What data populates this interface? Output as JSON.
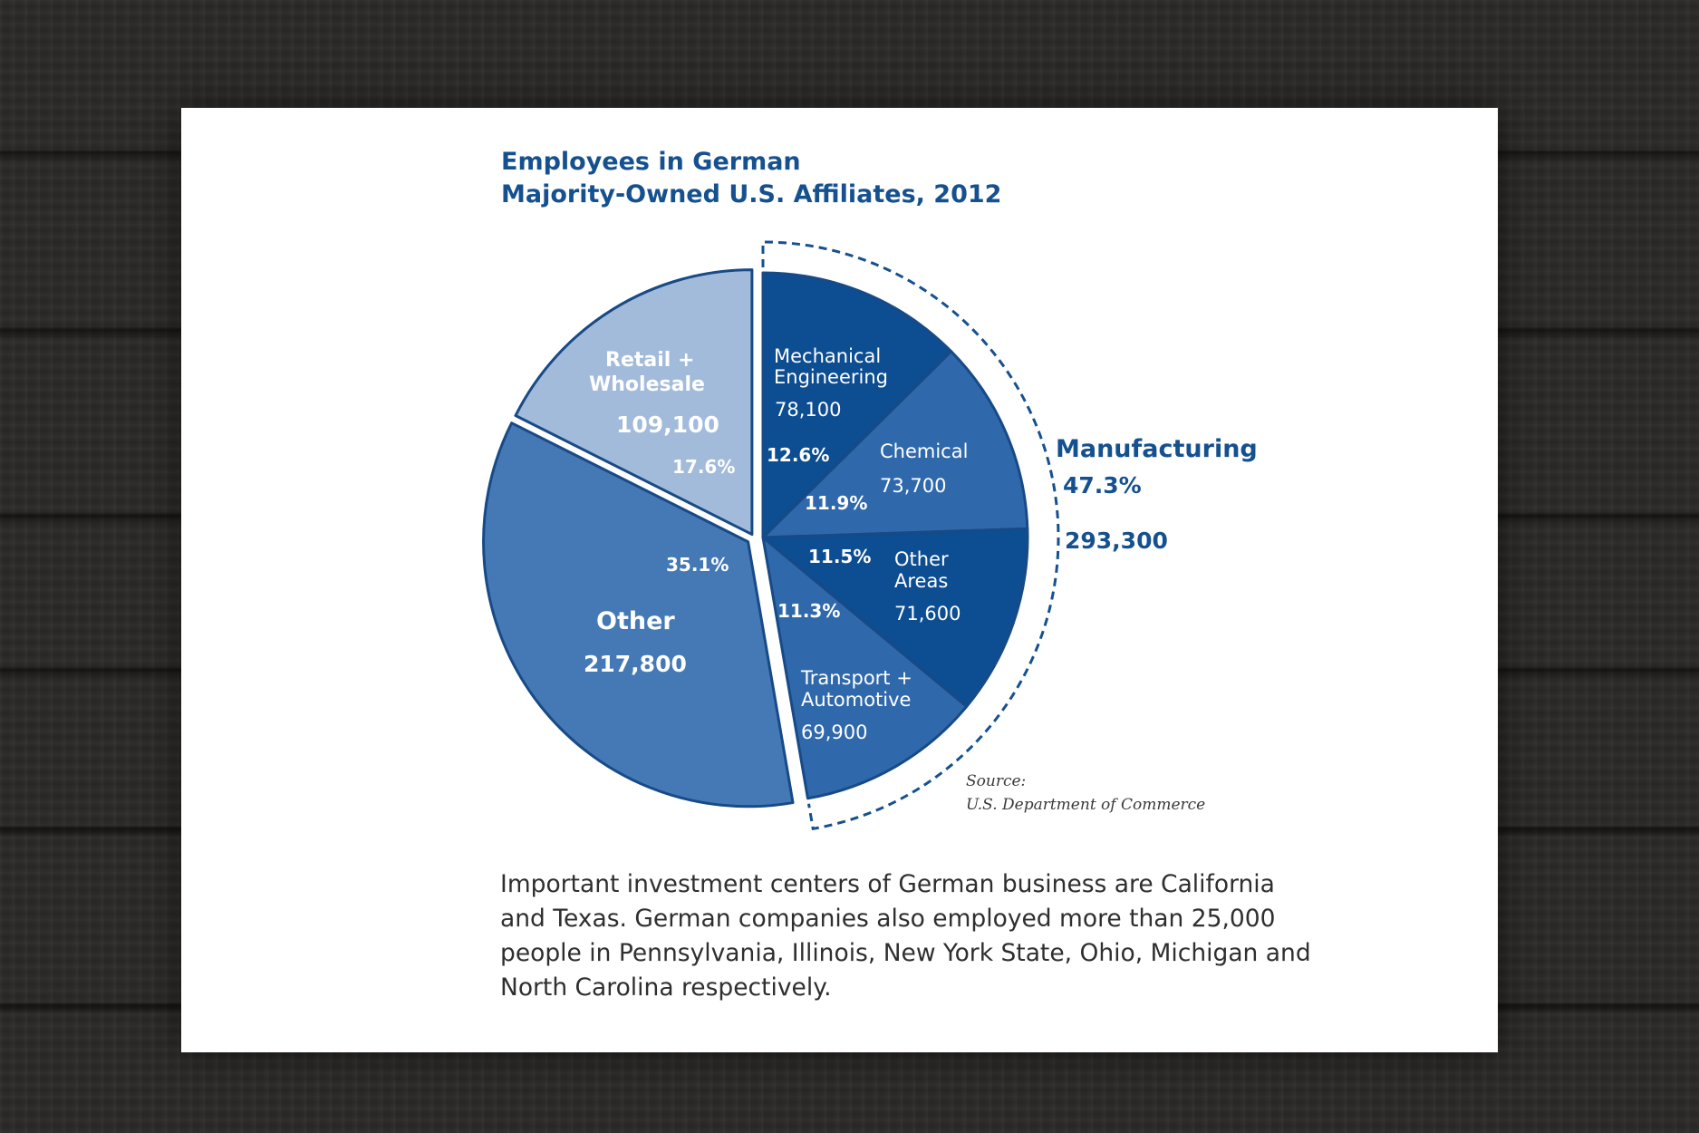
{
  "caption": "Important investment centers of German business are California and Texas. German companies also employed more than 25,000 people in Pennsylvania, Illinois, New York State, Ohio, Michigan and North Carolina respectively.",
  "source": {
    "label": "Source:",
    "name": "U.S. Department of Commerce"
  },
  "colors": {
    "title": "#15508f",
    "dark_blue": "#0d4d91",
    "mid_blue": "#2f69ac",
    "other_blue": "#4479b6",
    "light_blue": "#a2bbda",
    "outline": "#174a86"
  },
  "chart_data": {
    "type": "pie",
    "title_lines": [
      "Employees in German",
      "Majority-Owned U.S. Affiliates, 2012"
    ],
    "unit": "employees",
    "slices": [
      {
        "key": "mech",
        "label_lines": [
          "Mechanical",
          "Engineering"
        ],
        "value": 78100,
        "value_label": "78,100",
        "percent": 12.6,
        "percent_label": "12.6%",
        "group": "Manufacturing",
        "color": "#0d4d91"
      },
      {
        "key": "chem",
        "label_lines": [
          "Chemical"
        ],
        "value": 73700,
        "value_label": "73,700",
        "percent": 11.9,
        "percent_label": "11.9%",
        "group": "Manufacturing",
        "color": "#2f69ac"
      },
      {
        "key": "areas",
        "label_lines": [
          "Other",
          "Areas"
        ],
        "value": 71600,
        "value_label": "71,600",
        "percent": 11.5,
        "percent_label": "11.5%",
        "group": "Manufacturing",
        "color": "#0d4d91"
      },
      {
        "key": "trans",
        "label_lines": [
          "Transport +",
          "Automotive"
        ],
        "value": 69900,
        "value_label": "69,900",
        "percent": 11.3,
        "percent_label": "11.3%",
        "group": "Manufacturing",
        "color": "#2f69ac"
      },
      {
        "key": "other",
        "label_lines": [
          "Other"
        ],
        "value": 217800,
        "value_label": "217,800",
        "percent": 35.1,
        "percent_label": "35.1%",
        "group": "",
        "color": "#4479b6"
      },
      {
        "key": "retail",
        "label_lines": [
          "Retail +",
          "Wholesale"
        ],
        "value": 109100,
        "value_label": "109,100",
        "percent": 17.6,
        "percent_label": "17.6%",
        "group": "",
        "color": "#a2bbda"
      }
    ],
    "groups": [
      {
        "name": "Manufacturing",
        "percent": 47.3,
        "percent_label": "47.3%",
        "value": 293300,
        "value_label": "293,300"
      }
    ]
  }
}
